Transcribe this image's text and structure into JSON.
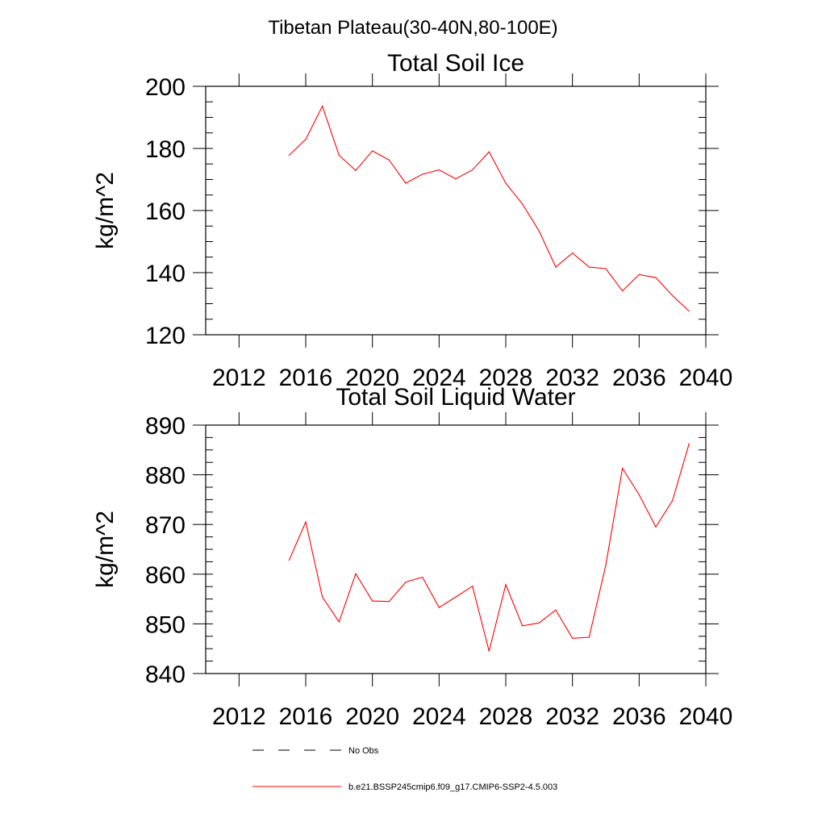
{
  "figure_title": "Tibetan Plateau(30-40N,80-100E)",
  "legend": [
    {
      "label": "No Obs",
      "style": "dashed",
      "color": "#000000"
    },
    {
      "label": "b.e21.BSSP245cmip6.f09_g17.CMIP6-SSP2-4.5.003",
      "style": "solid",
      "color": "#ff0000"
    }
  ],
  "chart_data": [
    {
      "type": "line",
      "title": "Total Soil Ice",
      "xlabel": "",
      "ylabel": "kg/m^2",
      "xlim": [
        2010,
        2040
      ],
      "ylim": [
        120,
        200
      ],
      "xticks": [
        2012,
        2016,
        2020,
        2024,
        2028,
        2032,
        2036,
        2040
      ],
      "xtick_labels": [
        "2012",
        "2016",
        "2020",
        "2024",
        "2028",
        "2032",
        "2036",
        "2040"
      ],
      "yticks": [
        120,
        140,
        160,
        180,
        200
      ],
      "ytick_labels": [
        "120",
        "140",
        "160",
        "180",
        "200"
      ],
      "series": [
        {
          "name": "b.e21.BSSP245cmip6.f09_g17.CMIP6-SSP2-4.5.003",
          "color": "#ff0000",
          "x": [
            2015,
            2016,
            2017,
            2018,
            2019,
            2020,
            2021,
            2022,
            2023,
            2024,
            2025,
            2026,
            2027,
            2028,
            2029,
            2030,
            2031,
            2032,
            2033,
            2034,
            2035,
            2036,
            2037,
            2038,
            2039
          ],
          "values": [
            177.8,
            182.9,
            193.6,
            177.8,
            172.9,
            179.2,
            176.3,
            168.8,
            171.7,
            173.1,
            170.2,
            173.1,
            178.9,
            168.8,
            162.1,
            153.4,
            141.8,
            146.3,
            141.8,
            141.3,
            134.1,
            139.4,
            138.4,
            132.6,
            127.6
          ]
        }
      ]
    },
    {
      "type": "line",
      "title": "Total Soil Liquid Water",
      "xlabel": "",
      "ylabel": "kg/m^2",
      "xlim": [
        2010,
        2040
      ],
      "ylim": [
        840,
        890
      ],
      "xticks": [
        2012,
        2016,
        2020,
        2024,
        2028,
        2032,
        2036,
        2040
      ],
      "xtick_labels": [
        "2012",
        "2016",
        "2020",
        "2024",
        "2028",
        "2032",
        "2036",
        "2040"
      ],
      "yticks": [
        840,
        850,
        860,
        870,
        880,
        890
      ],
      "ytick_labels": [
        "840",
        "850",
        "860",
        "870",
        "880",
        "890"
      ],
      "series": [
        {
          "name": "b.e21.BSSP245cmip6.f09_g17.CMIP6-SSP2-4.5.003",
          "color": "#ff0000",
          "x": [
            2015,
            2016,
            2017,
            2018,
            2019,
            2020,
            2021,
            2022,
            2023,
            2024,
            2025,
            2026,
            2027,
            2028,
            2029,
            2030,
            2031,
            2032,
            2033,
            2034,
            2035,
            2036,
            2037,
            2038,
            2039
          ],
          "values": [
            862.8,
            870.5,
            855.4,
            850.4,
            860.1,
            854.6,
            854.5,
            858.4,
            859.4,
            853.3,
            855.4,
            857.6,
            844.5,
            857.9,
            849.6,
            850.2,
            852.8,
            847.1,
            847.3,
            861.8,
            881.3,
            876.0,
            869.5,
            874.8,
            886.3
          ]
        }
      ]
    }
  ]
}
